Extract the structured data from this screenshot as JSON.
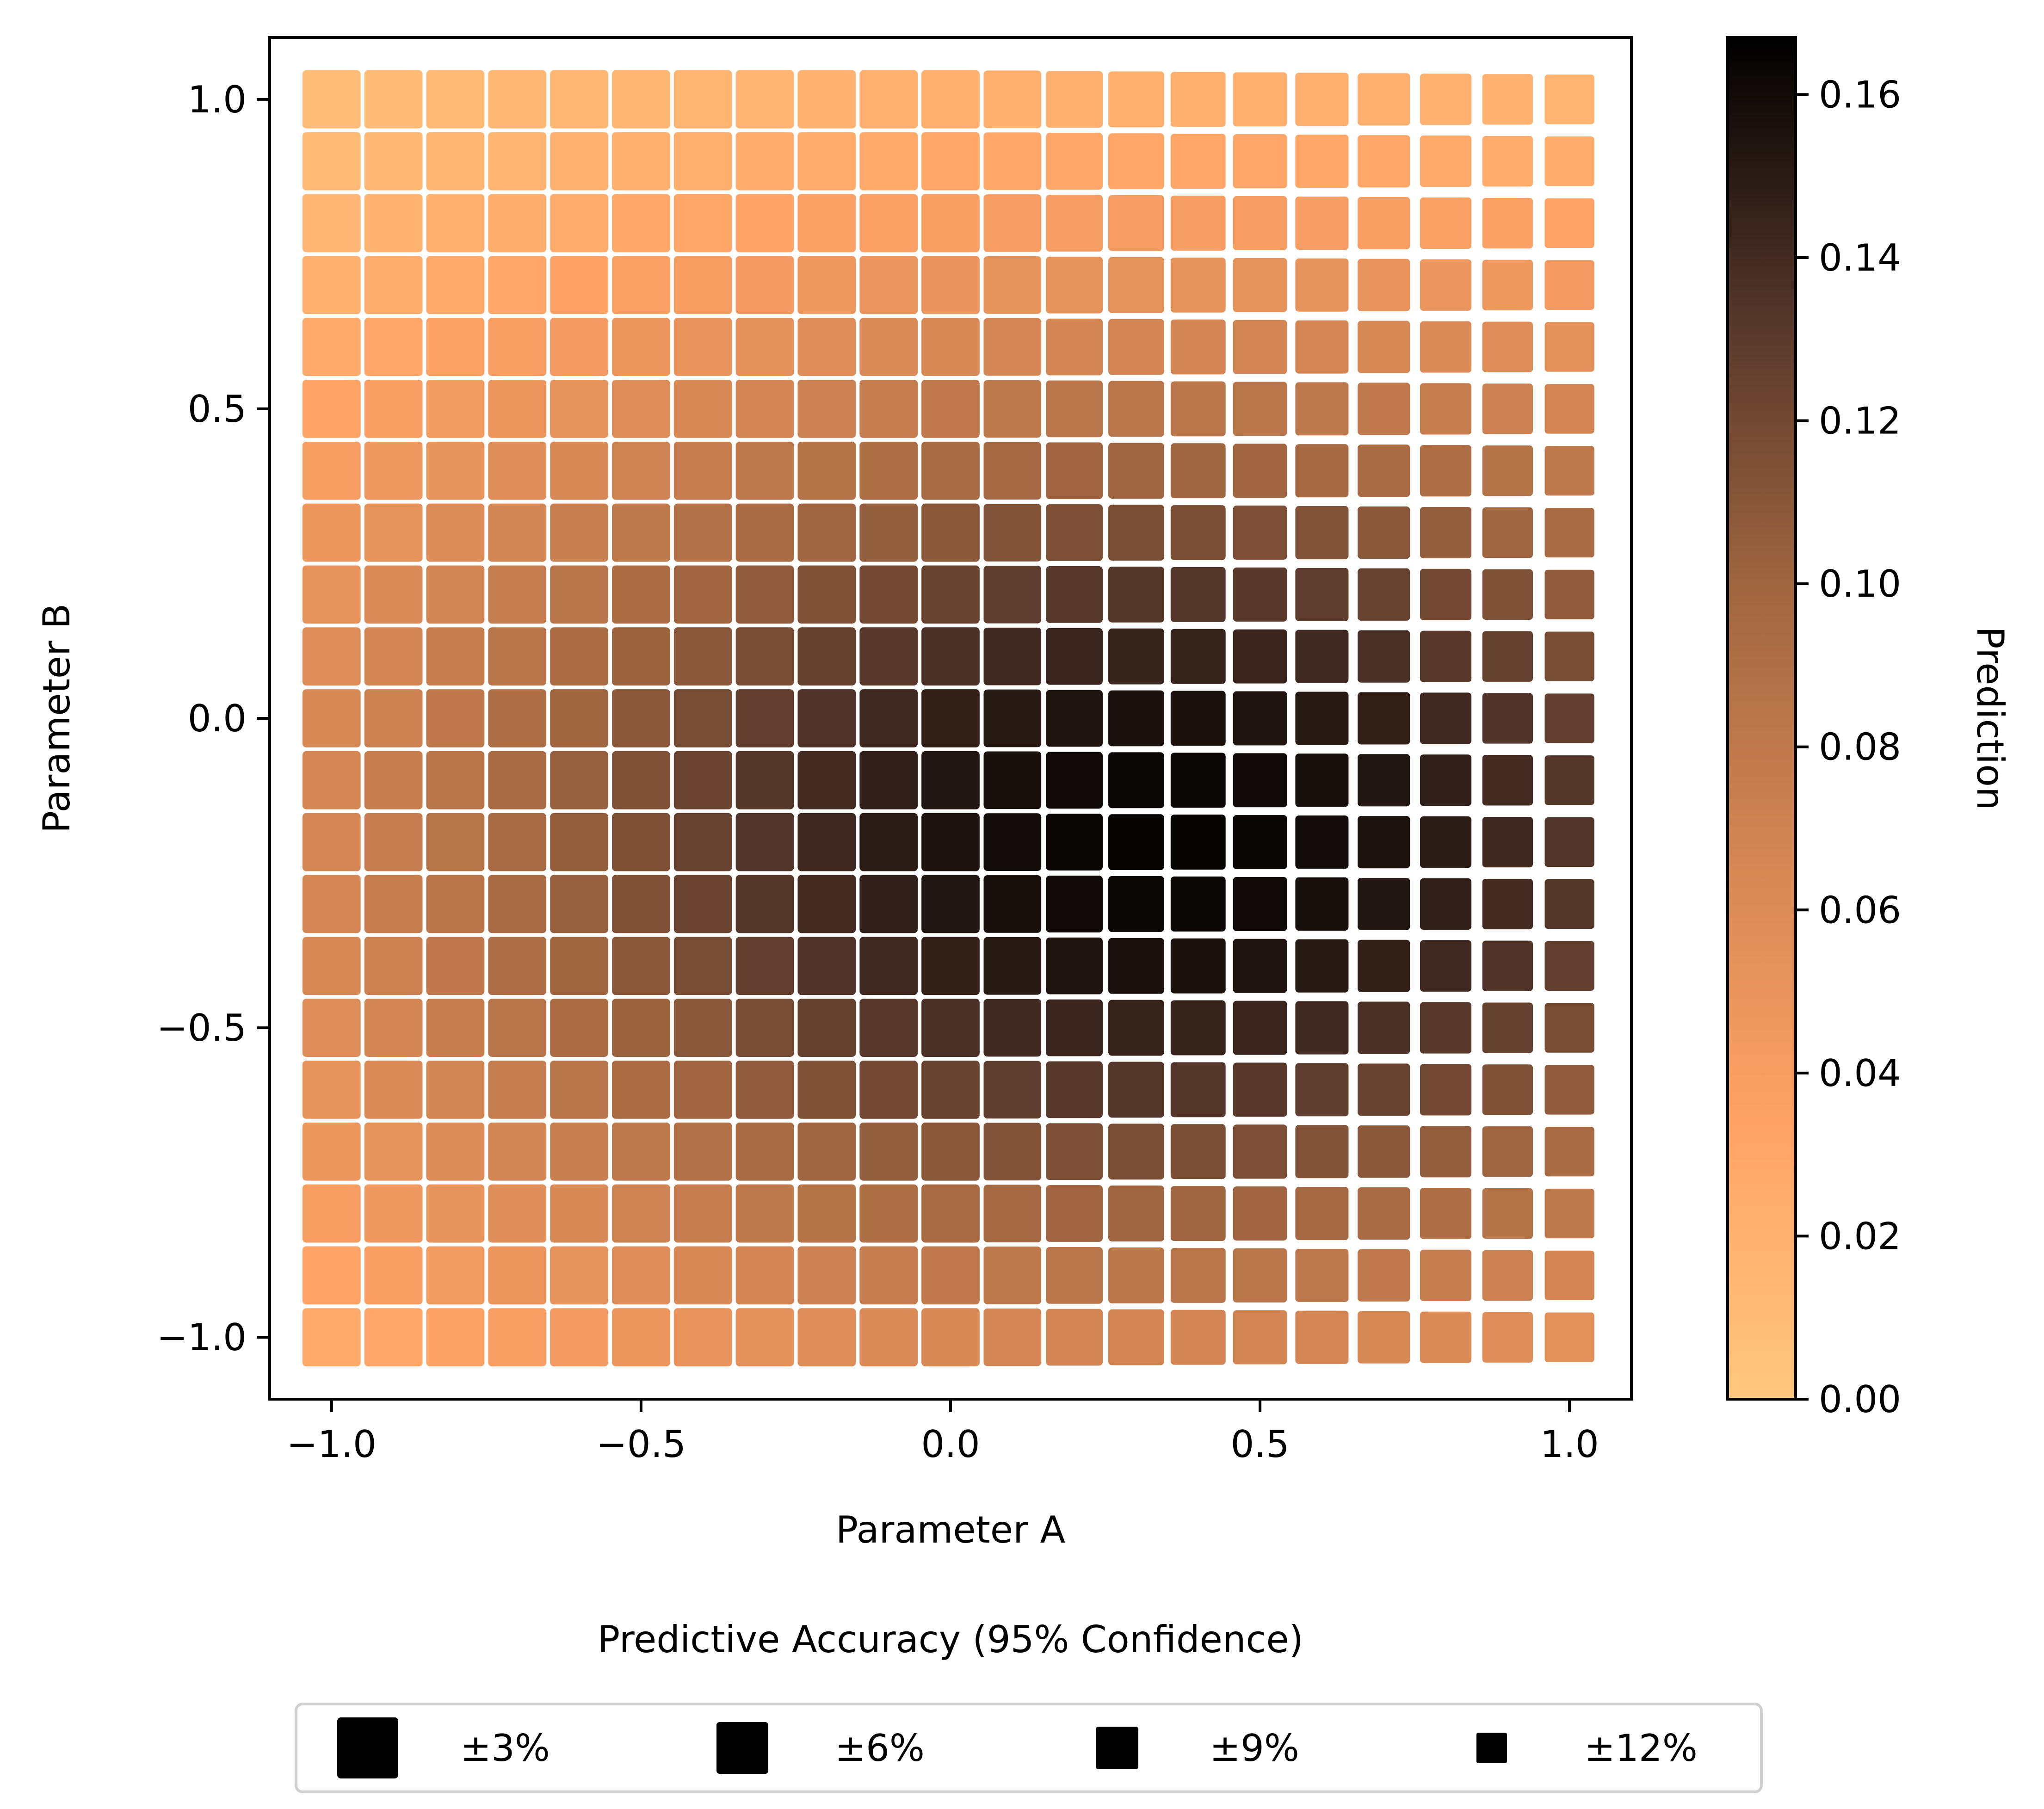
{
  "chart_data": {
    "type": "heatmap",
    "variant": "value-suppressing uncertainty square map",
    "xlabel": "Parameter A",
    "ylabel": "Parameter B",
    "xlim": [
      -1.1,
      1.1
    ],
    "ylim": [
      -1.1,
      1.1
    ],
    "xticks": [
      -1.0,
      -0.5,
      0.0,
      0.5,
      1.0
    ],
    "yticks": [
      -1.0,
      -0.5,
      0.0,
      0.5,
      1.0
    ],
    "xtick_labels": [
      "−1.0",
      "−0.5",
      "0.0",
      "0.5",
      "1.0"
    ],
    "ytick_labels": [
      "−1.0",
      "−0.5",
      "0.0",
      "0.5",
      "1.0"
    ],
    "grid": false,
    "grid_x": [
      -1.0,
      -0.9,
      -0.8,
      -0.7,
      -0.6,
      -0.5,
      -0.4,
      -0.3,
      -0.2,
      -0.1,
      0.0,
      0.1,
      0.2,
      0.3,
      0.4,
      0.5,
      0.6,
      0.7,
      0.8,
      0.9,
      1.0
    ],
    "grid_y": [
      -1.0,
      -0.9,
      -0.8,
      -0.7,
      -0.6,
      -0.5,
      -0.4,
      -0.3,
      -0.2,
      -0.1,
      0.0,
      0.1,
      0.2,
      0.3,
      0.4,
      0.5,
      0.6,
      0.7,
      0.8,
      0.9,
      1.0
    ],
    "prediction_model": {
      "form": "gaussian bump",
      "peak": 0.165,
      "center_a": 0.35,
      "center_b": -0.2,
      "sigma_a": 1.0,
      "sigma_b": 0.6
    },
    "uncertainty_model": {
      "form": "linear",
      "base_percent": 4.5,
      "slope_a_percent": 4.5,
      "slope_b_percent": 0,
      "note": "squares shrink toward the right edge (larger uncertainty)"
    },
    "colorbar": {
      "label": "Prediction",
      "min": 0.0,
      "max": 0.167,
      "ticks": [
        0.0,
        0.02,
        0.04,
        0.06,
        0.08,
        0.1,
        0.12,
        0.14,
        0.16
      ],
      "tick_labels": [
        "0.00",
        "0.02",
        "0.04",
        "0.06",
        "0.08",
        "0.10",
        "0.12",
        "0.14",
        "0.16"
      ],
      "colormap": "copper_r",
      "color_low": "#ffc77f",
      "color_high": "#000000"
    },
    "legend": {
      "title": "Predictive Accuracy (95% Confidence)",
      "placement": "bottom-center",
      "entries": [
        {
          "label": "±3%",
          "uncertainty_percent": 3
        },
        {
          "label": "±6%",
          "uncertainty_percent": 6
        },
        {
          "label": "±9%",
          "uncertainty_percent": 9
        },
        {
          "label": "±12%",
          "uncertainty_percent": 12
        }
      ],
      "marker_color": "#000000"
    }
  }
}
